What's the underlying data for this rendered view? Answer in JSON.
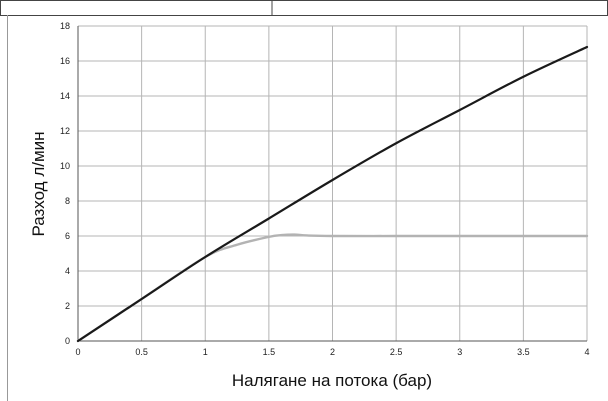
{
  "chart_data": {
    "type": "line",
    "title": "",
    "xlabel": "Налягане на потока (бар)",
    "ylabel": "Разход л/мин",
    "xlim": [
      0,
      4
    ],
    "ylim": [
      0,
      18
    ],
    "x_ticks": [
      "0",
      "0.5",
      "1",
      "1.5",
      "2",
      "2.5",
      "3",
      "3.5",
      "4"
    ],
    "y_ticks": [
      "0",
      "2",
      "4",
      "6",
      "8",
      "10",
      "12",
      "14",
      "16",
      "18"
    ],
    "grid": true,
    "legend": "none",
    "series": [
      {
        "color": "#1a1a1a",
        "x": [
          0,
          0.5,
          1,
          1.5,
          2,
          2.5,
          3,
          3.5,
          4
        ],
        "y": [
          0,
          2.4,
          4.8,
          7.0,
          9.2,
          11.3,
          13.2,
          15.1,
          16.8
        ]
      },
      {
        "color": "#b3b3b3",
        "x": [
          0,
          0.5,
          1,
          1.25,
          1.5,
          1.6,
          1.7,
          1.8,
          2,
          2.5,
          3,
          3.5,
          4
        ],
        "y": [
          0,
          2.4,
          4.8,
          5.5,
          5.95,
          6.05,
          6.08,
          6.03,
          6.0,
          6.0,
          6.0,
          6.0,
          6.0
        ]
      }
    ]
  }
}
